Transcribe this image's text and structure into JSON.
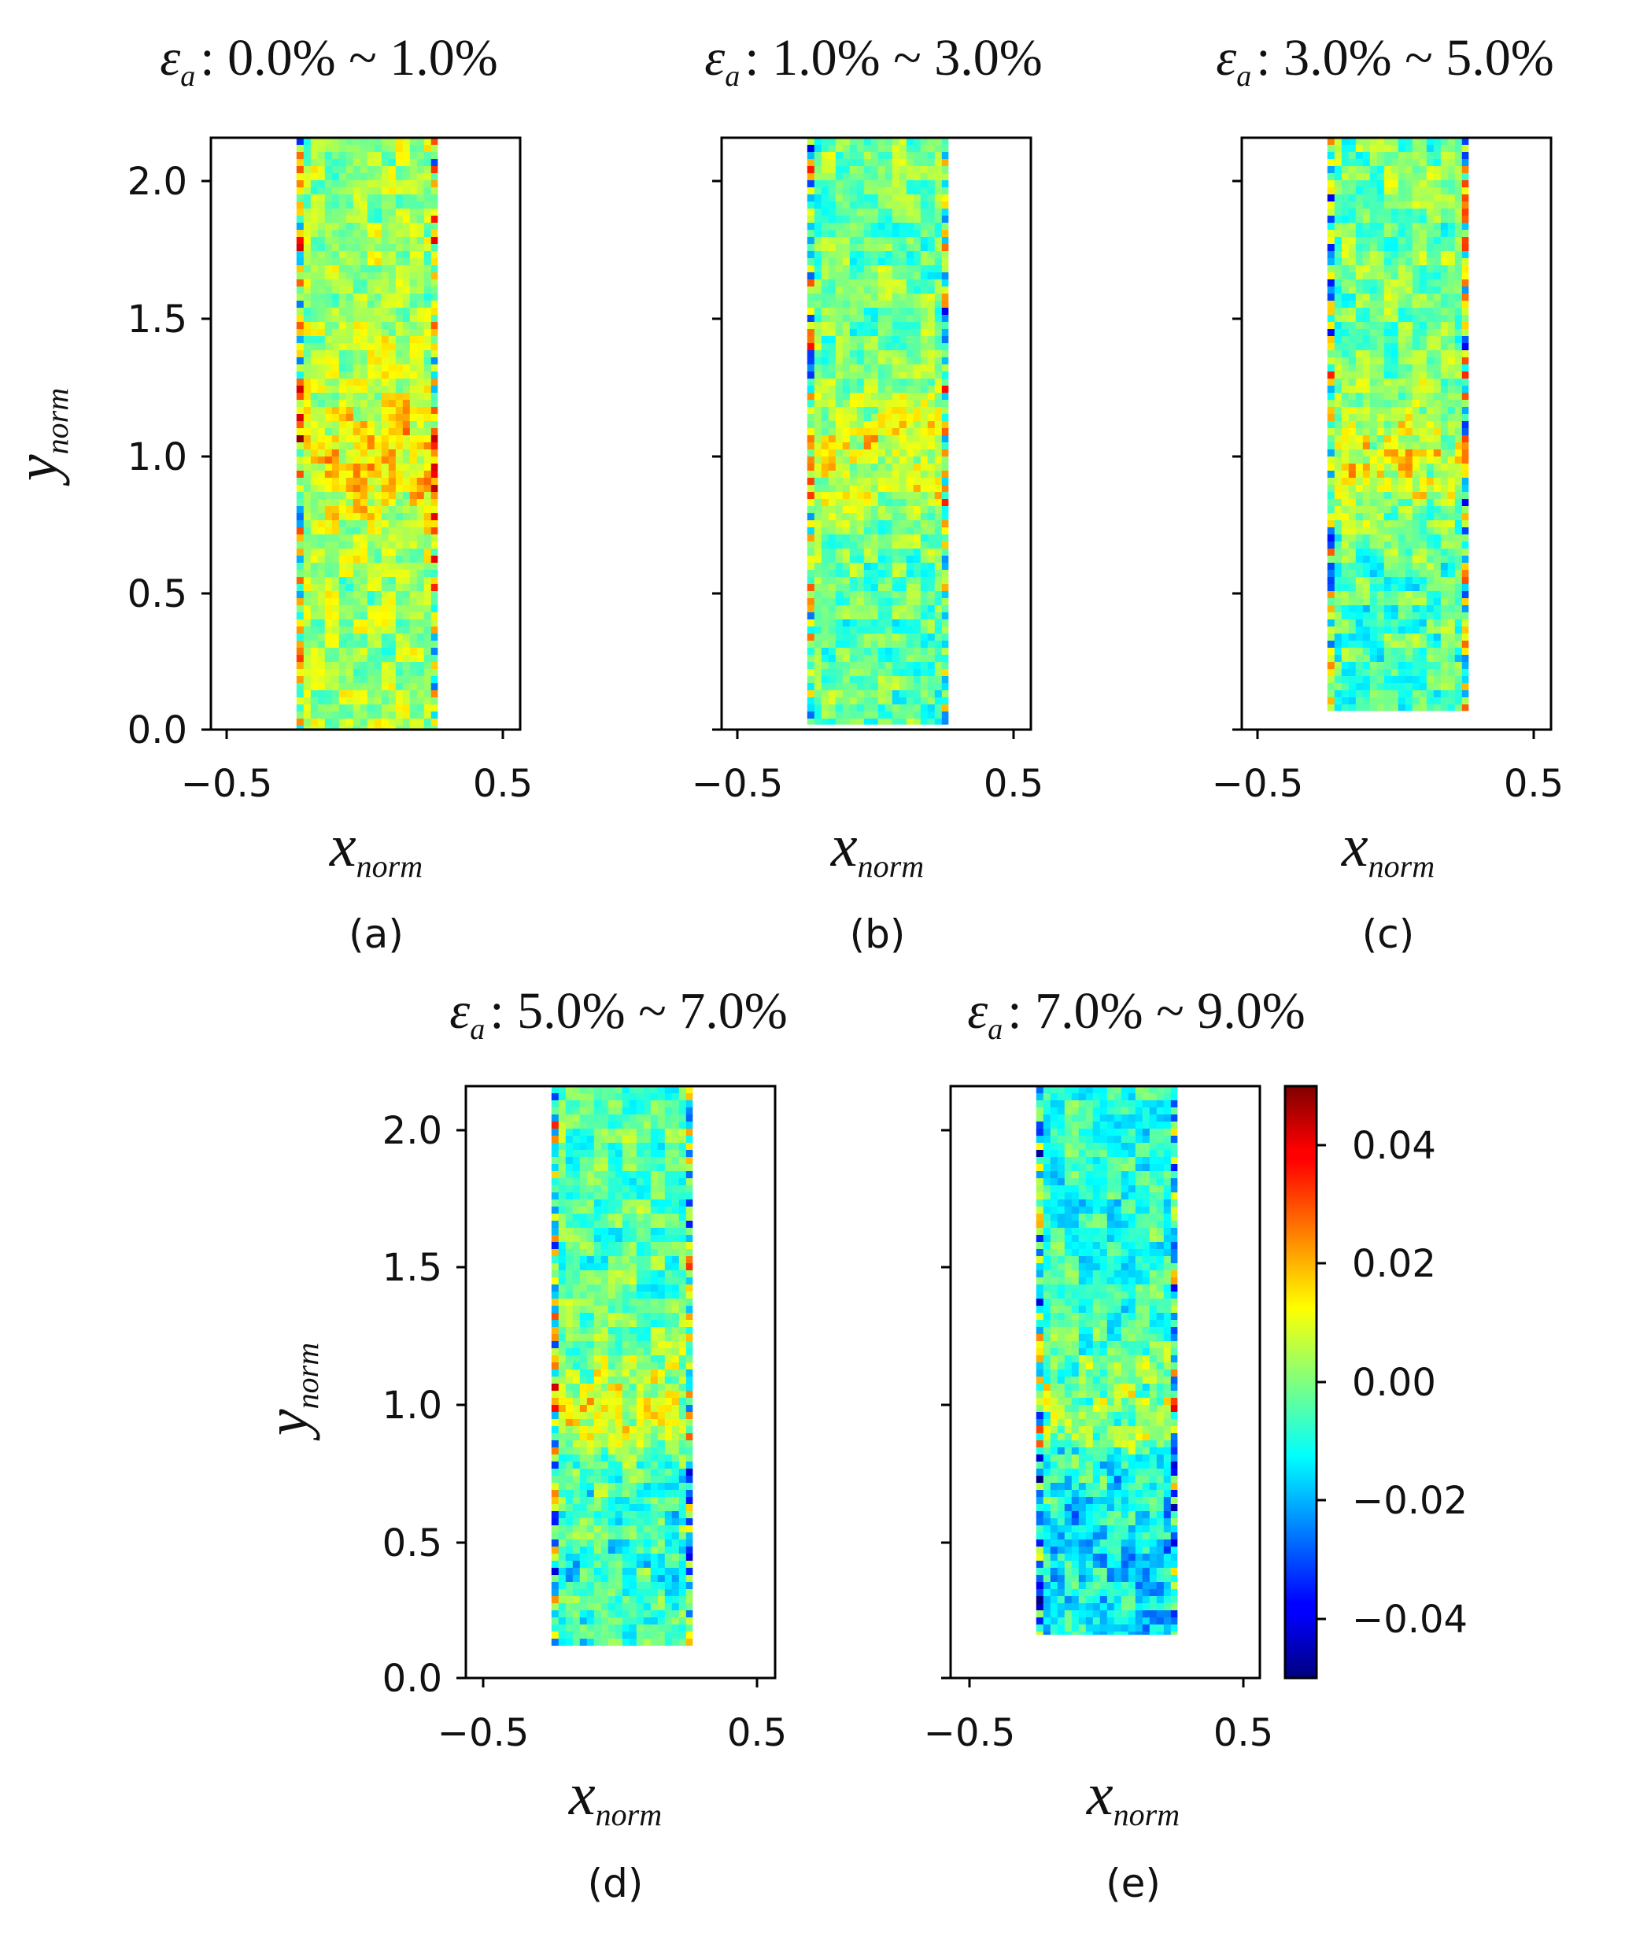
{
  "chart_data": {
    "type": "heatmap",
    "colormap": "jet",
    "colorbar": {
      "range": [
        -0.05,
        0.05
      ],
      "ticks": [
        "0.04",
        "0.02",
        "0.00",
        "−0.02",
        "−0.04"
      ],
      "tick_values": [
        0.04,
        0.02,
        0.0,
        -0.02,
        -0.04
      ]
    },
    "x_ticks": [
      "−0.5",
      "0.5"
    ],
    "x_tick_values": [
      -0.5,
      0.5
    ],
    "y_ticks": [
      "2.0",
      "1.5",
      "1.0",
      "0.5",
      "0.0"
    ],
    "y_tick_values": [
      2.0,
      1.5,
      1.0,
      0.5,
      0.0
    ],
    "xlim": [
      -0.56,
      0.56
    ],
    "ylim": [
      0.0,
      2.17
    ],
    "xlabel": {
      "main": "x",
      "sub": "norm"
    },
    "ylabel": {
      "main": "y",
      "sub": "norm"
    },
    "panels": [
      {
        "id": "a",
        "label": "(a)",
        "title": {
          "symbol": "ε",
          "sub": "a",
          "range": ": 0.0% ~ 1.0%"
        },
        "specimen": {
          "x_left": -0.25,
          "x_right": 0.26,
          "y_bottom": 0.0,
          "y_top": 2.17,
          "mean": 0.003
        }
      },
      {
        "id": "b",
        "label": "(b)",
        "title": {
          "symbol": "ε",
          "sub": "a",
          "range": ": 1.0% ~ 3.0%"
        },
        "specimen": {
          "x_left": -0.25,
          "x_right": 0.26,
          "y_bottom": 0.02,
          "y_top": 2.17,
          "mean": -0.002
        }
      },
      {
        "id": "c",
        "label": "(c)",
        "title": {
          "symbol": "ε",
          "sub": "a",
          "range": ": 3.0% ~ 5.0%"
        },
        "specimen": {
          "x_left": -0.25,
          "x_right": 0.26,
          "y_bottom": 0.07,
          "y_top": 2.17,
          "mean": -0.002
        }
      },
      {
        "id": "d",
        "label": "(d)",
        "title": {
          "symbol": "ε",
          "sub": "a",
          "range": ": 5.0% ~ 7.0%"
        },
        "specimen": {
          "x_left": -0.25,
          "x_right": 0.26,
          "y_bottom": 0.12,
          "y_top": 2.17,
          "mean": -0.004
        }
      },
      {
        "id": "e",
        "label": "(e)",
        "title": {
          "symbol": "ε",
          "sub": "a",
          "range": ": 7.0% ~ 9.0%"
        },
        "specimen": {
          "x_left": -0.25,
          "x_right": 0.26,
          "y_bottom": 0.16,
          "y_top": 2.17,
          "mean": -0.009
        }
      }
    ]
  }
}
